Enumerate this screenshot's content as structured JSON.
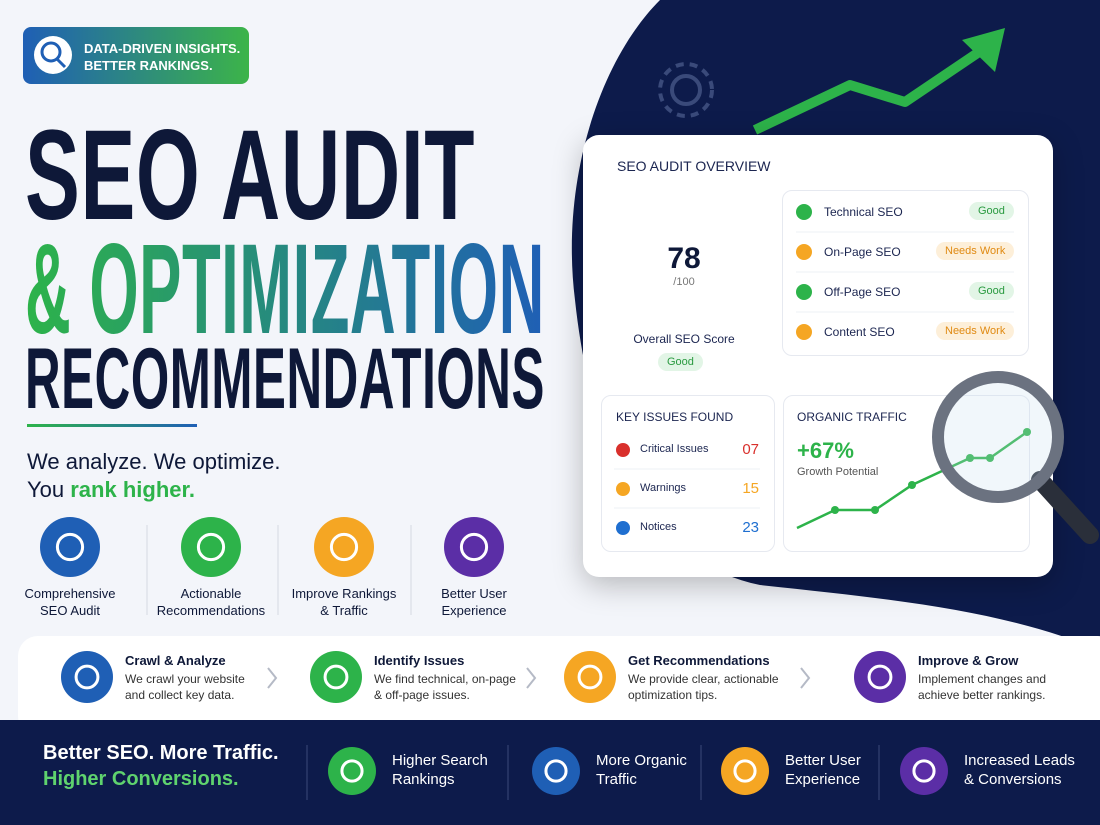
{
  "badge": {
    "lines": [
      "DATA-DRIVEN INSIGHTS.",
      "BETTER RANKINGS."
    ]
  },
  "headline": {
    "line1": "SEO AUDIT",
    "line2": "& OPTIMIZATION",
    "line3": "RECOMMENDATIONS"
  },
  "tagline": {
    "line1": "We analyze. We optimize.",
    "line2_start": "You",
    "line2_highlight": "rank higher."
  },
  "features": [
    {
      "lines": [
        "Comprehensive",
        "SEO Audit"
      ]
    },
    {
      "lines": [
        "Actionable",
        "Recommendations"
      ]
    },
    {
      "lines": [
        "Improve Rankings",
        "& Traffic"
      ]
    },
    {
      "lines": [
        "Better User",
        "Experience"
      ]
    }
  ],
  "dashboard": {
    "title": "SEO AUDIT OVERVIEW",
    "score": 78,
    "score_max": {
      "value": 100,
      "label": "/100"
    },
    "score_label": "Overall SEO Score",
    "score_status": "Good",
    "categories": [
      {
        "name": "Technical SEO",
        "status": "Good"
      },
      {
        "name": "On-Page SEO",
        "status": "Needs Work"
      },
      {
        "name": "Off-Page SEO",
        "status": "Good"
      },
      {
        "name": "Content SEO",
        "status": "Needs Work"
      }
    ],
    "key_issues": {
      "title": "KEY ISSUES FOUND",
      "items": [
        {
          "label": "Critical Issues",
          "count": "07"
        },
        {
          "label": "Warnings",
          "count": 15
        },
        {
          "label": "Notices",
          "count": 23
        }
      ]
    },
    "organic_traffic": {
      "title": "ORGANIC TRAFFIC",
      "growth": "+67%",
      "growth_label": "Growth Potential"
    }
  },
  "steps": [
    {
      "title": "Crawl & Analyze",
      "desc": [
        "We crawl your website",
        "and collect key data."
      ]
    },
    {
      "title": "Identify Issues",
      "desc": [
        "We find technical, on-page",
        "& off-page issues."
      ]
    },
    {
      "title": "Get Recommendations",
      "desc": [
        "We provide clear, actionable",
        "optimization tips."
      ]
    },
    {
      "title": "Improve & Grow",
      "desc": [
        "Implement changes and",
        "achieve better rankings."
      ]
    }
  ],
  "footer": {
    "slogan": [
      "Better SEO. More Traffic.",
      "Higher Conversions."
    ],
    "benefits": [
      {
        "lines": [
          "Higher Search",
          "Rankings"
        ]
      },
      {
        "lines": [
          "More Organic",
          "Traffic"
        ]
      },
      {
        "lines": [
          "Better User",
          "Experience"
        ]
      },
      {
        "lines": [
          "Increased Leads",
          "& Conversions"
        ]
      }
    ]
  }
}
